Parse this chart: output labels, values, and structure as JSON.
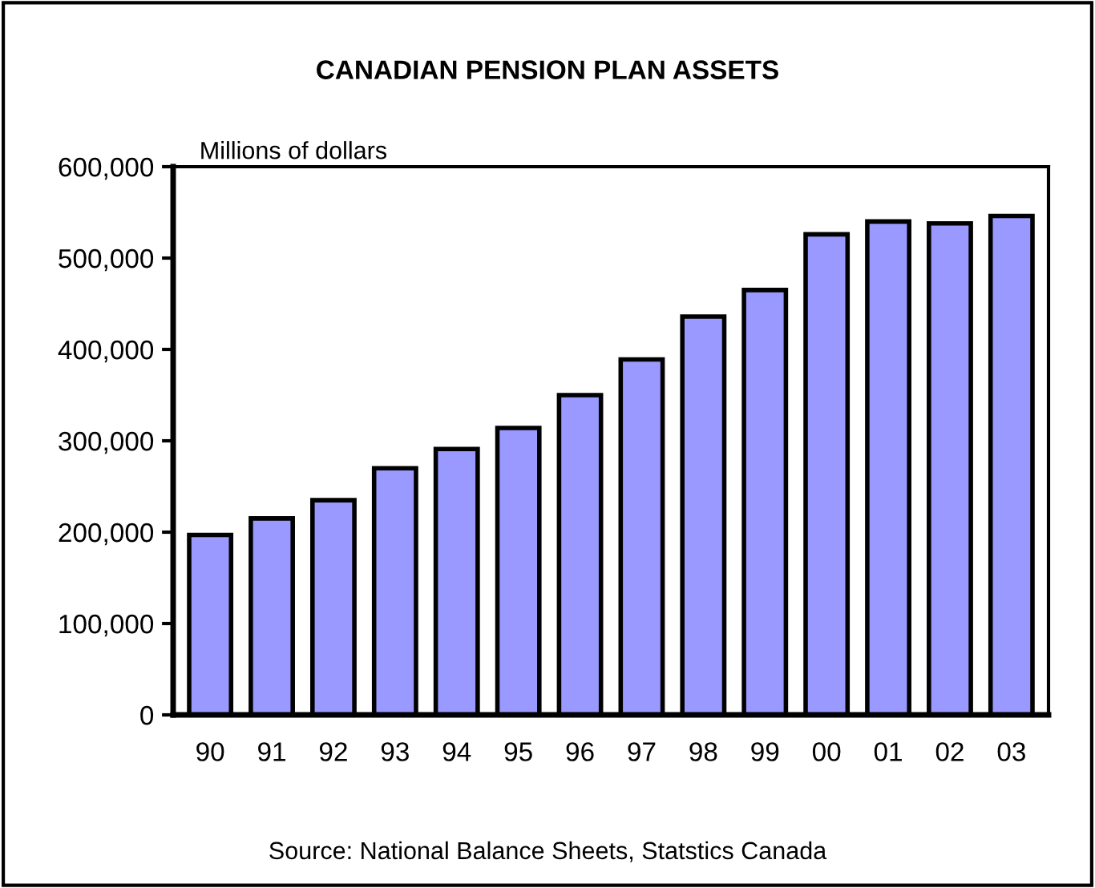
{
  "chart_data": {
    "type": "bar",
    "title": "CANADIAN PENSION PLAN ASSETS",
    "ylabel": "Millions of dollars",
    "categories": [
      "90",
      "91",
      "92",
      "93",
      "94",
      "95",
      "96",
      "97",
      "98",
      "99",
      "00",
      "01",
      "02",
      "03"
    ],
    "values": [
      197000,
      215000,
      235000,
      270000,
      291000,
      314000,
      350000,
      389000,
      436000,
      465000,
      526000,
      540000,
      538000,
      546000
    ],
    "color": "#9999ff",
    "ylim": [
      0,
      600000
    ],
    "yticks": [
      {
        "value": 0,
        "label": "0"
      },
      {
        "value": 100000,
        "label": "100,000"
      },
      {
        "value": 200000,
        "label": "200,000"
      },
      {
        "value": 300000,
        "label": "300,000"
      },
      {
        "value": 400000,
        "label": "400,000"
      },
      {
        "value": 500000,
        "label": "500,000"
      },
      {
        "value": 600000,
        "label": "600,000"
      }
    ],
    "grid": false,
    "annotations": [
      "Source: National Balance Sheets, Statstics Canada"
    ]
  }
}
